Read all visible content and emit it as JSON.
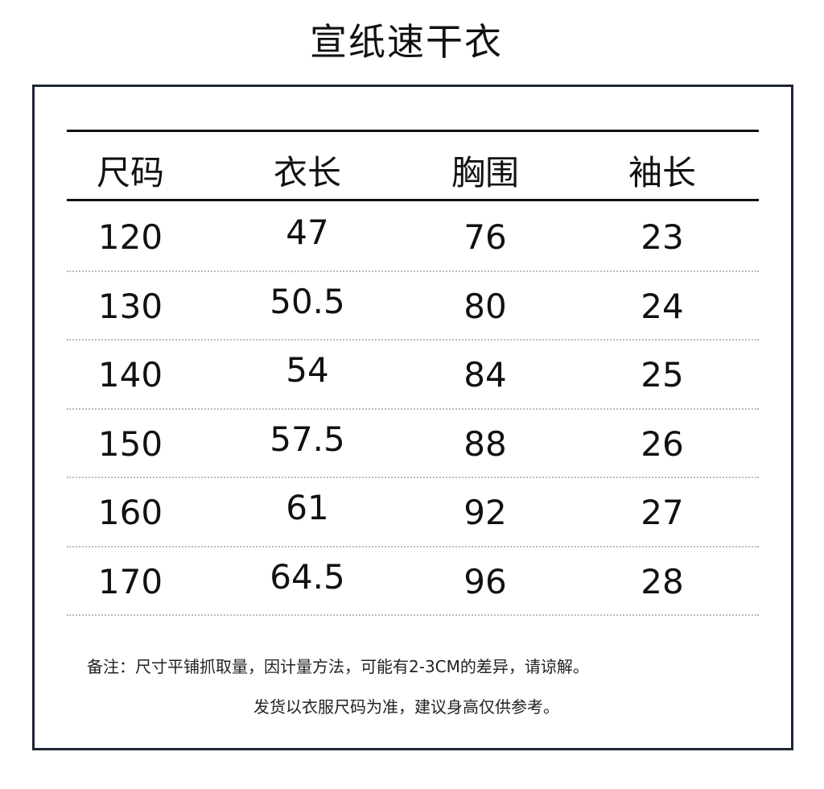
{
  "title": "宣纸速干衣",
  "table": {
    "headers": [
      "尺码",
      "衣长",
      "胸围",
      "袖长"
    ],
    "rows": [
      [
        "120",
        "47",
        "76",
        "23"
      ],
      [
        "130",
        "50.5",
        "80",
        "24"
      ],
      [
        "140",
        "54",
        "84",
        "25"
      ],
      [
        "150",
        "57.5",
        "88",
        "26"
      ],
      [
        "160",
        "61",
        "92",
        "27"
      ],
      [
        "170",
        "64.5",
        "96",
        "28"
      ]
    ]
  },
  "notes": [
    "备注：尺寸平铺抓取量，因计量方法，可能有2-3CM的差异，请谅解。",
    "发货以衣服尺码为准，建议身高仅供参考。"
  ],
  "colors": {
    "border": "#1e2535",
    "text": "#111111"
  }
}
